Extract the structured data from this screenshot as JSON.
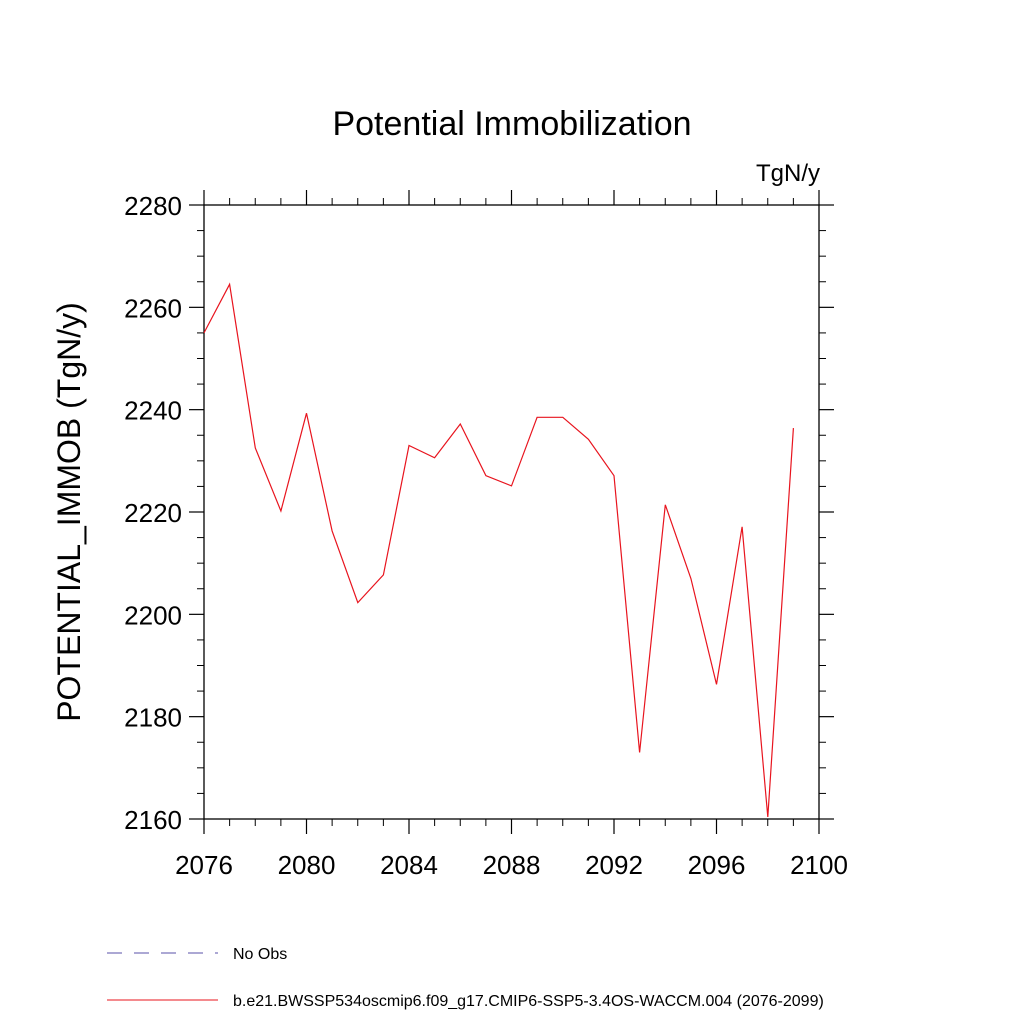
{
  "chart_data": {
    "type": "line",
    "title": "Potential Immobilization",
    "units_label": "TgN/y",
    "xlabel": "",
    "ylabel": "POTENTIAL_IMMOB  (TgN/y)",
    "xlim": [
      2076,
      2100
    ],
    "ylim": [
      2160,
      2280
    ],
    "x_ticks": [
      2076,
      2080,
      2084,
      2088,
      2092,
      2096,
      2100
    ],
    "y_ticks": [
      2160,
      2180,
      2200,
      2220,
      2240,
      2260,
      2280
    ],
    "series": [
      {
        "name": "b.e21.BWSSP534oscmip6.f09_g17.CMIP6-SSP5-3.4OS-WACCM.004 (2076-2099)",
        "color": "#e8141e",
        "x": [
          2076,
          2077,
          2078,
          2079,
          2080,
          2081,
          2082,
          2083,
          2084,
          2085,
          2086,
          2087,
          2088,
          2089,
          2090,
          2091,
          2092,
          2093,
          2094,
          2095,
          2096,
          2097,
          2098,
          2099
        ],
        "y": [
          2255,
          2264.5,
          2232.5,
          2220.2,
          2239.3,
          2216.3,
          2202.3,
          2207.7,
          2233,
          2230.6,
          2237.2,
          2227.1,
          2225.1,
          2238.5,
          2238.5,
          2234.2,
          2227.1,
          2173,
          2221.4,
          2207,
          2186.3,
          2217.1,
          2160.4,
          2236.4
        ]
      }
    ],
    "legend": [
      {
        "label": "No Obs",
        "style": "dashed",
        "color": "#5a50a8"
      },
      {
        "label": "b.e21.BWSSP534oscmip6.f09_g17.CMIP6-SSP5-3.4OS-WACCM.004 (2076-2099)",
        "style": "solid",
        "color": "#e8141e"
      }
    ]
  }
}
